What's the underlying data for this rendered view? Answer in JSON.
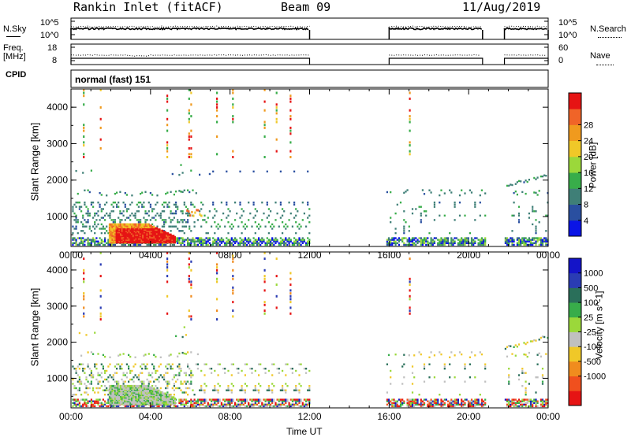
{
  "header": {
    "station": "Rankin Inlet (fitACF)",
    "beam": "Beam 09",
    "date": "11/Aug/2019"
  },
  "noise_panel": {
    "left_label": "N.Sky",
    "right_label": "N.Search",
    "left_ticks": [
      "10^5",
      "10^0"
    ],
    "right_ticks": [
      "10^5",
      "10^0"
    ]
  },
  "freq_panel": {
    "left_label_1": "Freq.",
    "left_label_2": "[MHz]",
    "right_label": "Nave",
    "left_ticks": [
      "18",
      "8"
    ],
    "right_ticks": [
      "60",
      "0"
    ]
  },
  "cpid": {
    "label": "CPID",
    "value": "normal (fast) 151"
  },
  "colors": {
    "power_scale": [
      "#0a14e6",
      "#2a4fa0",
      "#3f7f77",
      "#38ad4a",
      "#9bd83a",
      "#f0c828",
      "#f09a1e",
      "#f06428",
      "#e61414"
    ],
    "velocity_scale": [
      "#e61414",
      "#f0501e",
      "#f08c1e",
      "#f0c828",
      "#c0c0c0",
      "#9bd83a",
      "#38ad4a",
      "#2a6f5a",
      "#2a3cb4",
      "#1414c8"
    ]
  },
  "chart_data": [
    {
      "type": "heatmap",
      "name": "power",
      "xlabel": "",
      "ylabel": "Slant Range [km]",
      "x_range_hours": [
        0,
        24
      ],
      "y_range_km": [
        180,
        4500
      ],
      "x_ticks": [
        "00:00",
        "04:00",
        "08:00",
        "12:00",
        "16:00",
        "20:00",
        "00:00"
      ],
      "y_ticks": [
        1000,
        2000,
        3000,
        4000
      ],
      "colorbar_label": "Power [dB]",
      "colorbar_ticks": [
        4,
        8,
        12,
        16,
        20,
        24,
        28
      ],
      "data_gaps_hours": [
        [
          12,
          15.8
        ],
        [
          20.8,
          21.8
        ]
      ]
    },
    {
      "type": "heatmap",
      "name": "velocity",
      "xlabel": "Time UT",
      "ylabel": "Slant Range [km]",
      "x_range_hours": [
        0,
        24
      ],
      "y_range_km": [
        180,
        4500
      ],
      "x_ticks": [
        "00:00",
        "04:00",
        "08:00",
        "12:00",
        "16:00",
        "20:00",
        "00:00"
      ],
      "y_ticks": [
        1000,
        2000,
        3000,
        4000
      ],
      "colorbar_label": "Velocity [m s^-1]",
      "colorbar_ticks": [
        1000,
        500,
        100,
        25,
        -25,
        -100,
        -500,
        -1000
      ],
      "data_gaps_hours": [
        [
          12,
          15.8
        ],
        [
          20.8,
          21.8
        ]
      ]
    }
  ]
}
